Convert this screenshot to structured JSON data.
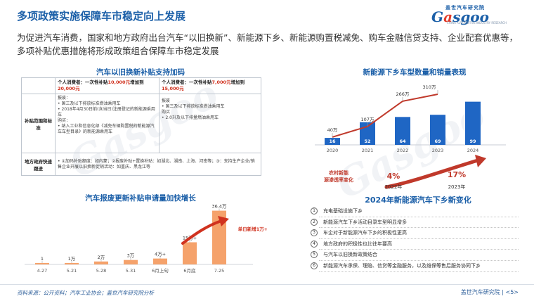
{
  "header": {
    "title": "多项政策实施保障车市稳定向上发展",
    "logo_top": "盖世汽车研究院",
    "logo_main_left": "G",
    "logo_main_hl": "a",
    "logo_main_right": "sgoo",
    "logo_sub": "CHINA AUTOMOTIVE INDUSTRY RESEARCH"
  },
  "intro": "为促进汽车消费，国家和地方政府出台汽车“以旧换新”、新能源下乡、新能源购置税减免、购车金融信贷支持、企业配套优惠等，多项补贴优惠措施将形成政策组合保障车市稳定发展",
  "subsidy_table": {
    "title": "汽车以旧换新补贴支持加码",
    "col1_head_a": "个人消费者：一次性补贴",
    "col1_head_b": "10,000元",
    "col1_head_c": "增加到",
    "col1_head_d": "20,000元",
    "col2_head_a": "个人消费者：一次性补贴",
    "col2_head_b": "7,000元",
    "col2_head_c": "增加到",
    "col2_head_d": "15,000元",
    "row1_label": "补贴范围和标准",
    "col1_row1": [
      "报废：",
      "• 国三及以下排放标准燃油乘用车",
      "• 2018年4月30日前(含当日)注册登记的新能源乘用车",
      "购买：",
      "• 纳入工业和信息化部《减免车辆购置税的新能源汽车车型目录》的新能源乘用车"
    ],
    "col2_row1": [
      "报废",
      "• 国三及以下排放标准燃油乘用车",
      "购买",
      "• 2.0升及以下排量燃油乘用车"
    ],
    "row2_label": "地方政府快速跟进",
    "row2_text": "• ①加码补贴额度：如内蒙；②报废补贴+置换补贴：如湖北、湖南、上海、河南等；③：支持生产企业/销售企业开展以旧换新促销活动：如重庆、黑龙江等"
  },
  "countryside_chart": {
    "title": "新能源下乡车型数量和销量表现"
  },
  "progress_chart": {
    "title": "汽车报废更新补贴申请量加快增长"
  },
  "changes": {
    "title": "2024年新能源汽车下乡新变化",
    "items": [
      {
        "num": "1",
        "text": "充电基础设施下乡"
      },
      {
        "num": "2",
        "text": "新能源汽车下乡活动目录车型明显增多"
      },
      {
        "num": "3",
        "text": "车企对于新能源汽车下乡的积极性更高"
      },
      {
        "num": "4",
        "text": "地方政府的积极性也比往年要高"
      },
      {
        "num": "5",
        "text": "与汽车以旧换新政策结合"
      },
      {
        "num": "6",
        "text": "新能源汽车承保、理赔、信贷等金融服务，以及维保等售后服务协同下乡"
      }
    ]
  },
  "footer": {
    "source": "资料来源：公开资料；汽车工业协会；盖世汽车研究院分析",
    "org": "盖世汽车研究院",
    "page": "<5>"
  },
  "colors": {
    "primary": "#1b5fa8",
    "accent_red": "#d0321f",
    "orange": "#f5a26b"
  },
  "chart_data": [
    {
      "type": "bar",
      "title": "新能源下乡车型数量和销量表现",
      "categories": [
        "2020",
        "2021",
        "2022",
        "2023",
        "2024"
      ],
      "series": [
        {
          "name": "",
          "kind": "bar",
          "values": [
            16,
            52,
            64,
            69,
            99
          ]
        },
        {
          "name": "",
          "kind": "line",
          "values": [
            40,
            107,
            266,
            310,
            null
          ],
          "labels": [
            "40万",
            "107万",
            "266万",
            "310万",
            ""
          ]
        }
      ],
      "annotations": {
        "label": "农村新能源渗透率变化",
        "y2022_value": "4%",
        "y2022_label": "2022年",
        "y2023_value": "17%",
        "y2023_label": "2023年"
      }
    },
    {
      "type": "bar",
      "title": "汽车报废更新补贴申请量加快增长",
      "categories": [
        "4.27",
        "5.21",
        "5.28",
        "5.31",
        "6月上旬",
        "6月底",
        "7.25"
      ],
      "values": [
        1,
        1,
        2,
        3,
        4,
        15,
        36.4
      ],
      "data_labels": [
        "1",
        "1万",
        "2万",
        "3万",
        "4万+",
        "15万+",
        "36.4万"
      ],
      "annotation": "单日新增1万+"
    }
  ]
}
